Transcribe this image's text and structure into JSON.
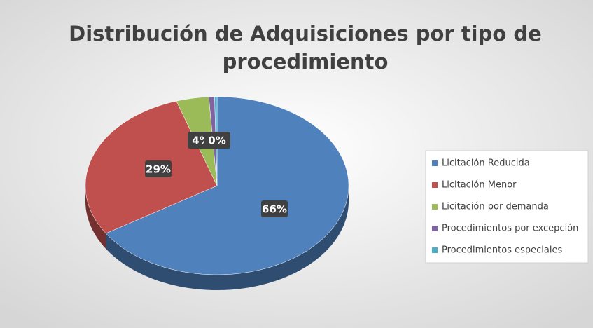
{
  "chart_data": {
    "type": "pie",
    "title": "Distribución de Adquisiciones por tipo de procedimiento",
    "categories": [
      "Licitación Reducida",
      "Licitación Menor",
      "Licitación por demanda",
      "Procedimientos por excepción",
      "Procedimientos especiales"
    ],
    "values": [
      66,
      29,
      4,
      0.7,
      0.3
    ],
    "value_labels": [
      "66%",
      "29%",
      "4%",
      null,
      "0%"
    ],
    "colors": [
      "#4f81bd",
      "#c0504d",
      "#9bbb59",
      "#8064a2",
      "#4bacc6"
    ],
    "legend": "right"
  }
}
